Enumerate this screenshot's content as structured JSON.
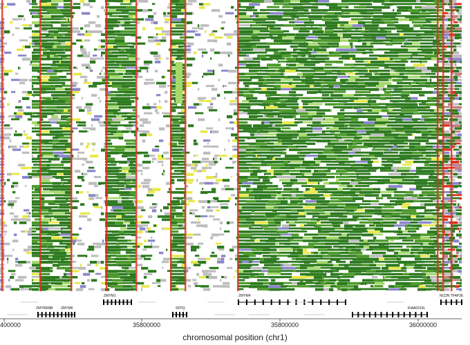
{
  "chart_data": {
    "type": "heatmap",
    "xlabel": "chromosomal position (chr1)",
    "xticks": [
      {
        "label": "400000"
      },
      {
        "label": "35800000"
      },
      {
        "label": "35800000"
      },
      {
        "label": "36000000"
      }
    ],
    "genes": {
      "track1": [
        {
          "name": "ZMYM1"
        },
        {
          "name": "ZMYM4"
        },
        {
          "name": "NCDN TFAP2E"
        }
      ],
      "track2": [
        {
          "name": "ZMYM6NB"
        },
        {
          "name": "ZMYM6"
        },
        {
          "name": "SFPQ"
        },
        {
          "name": "KIAA0319L"
        }
      ]
    },
    "colors": {
      "dark_green": "#2d7a1f",
      "mid_green": "#4c9a2a",
      "light_green": "#a6d96a",
      "white": "#ffffff",
      "gray": "#bdbdbd",
      "red": "#e0301e",
      "yellow": "#e8e84a",
      "purple": "#8a86c9",
      "cyan": "#6fd6c6"
    }
  }
}
